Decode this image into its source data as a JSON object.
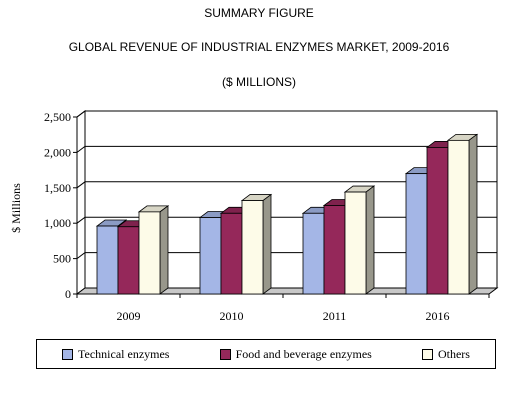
{
  "header": {
    "line1": "SUMMARY FIGURE",
    "line2": "GLOBAL REVENUE OF INDUSTRIAL ENZYMES MARKET, 2009-2016",
    "line3": "($ MILLIONS)"
  },
  "chart_data": {
    "type": "bar",
    "title": "GLOBAL REVENUE OF INDUSTRIAL ENZYMES MARKET, 2009-2016",
    "subtitle": "($ MILLIONS)",
    "ylabel": "$ Millions",
    "xlabel": "",
    "categories": [
      "2009",
      "2010",
      "2011",
      "2016"
    ],
    "ylim": [
      0,
      2500
    ],
    "yticks": [
      "0",
      "500",
      "1,000",
      "1,500",
      "2,000",
      "2,500"
    ],
    "ytick_values": [
      0,
      500,
      1000,
      1500,
      2000,
      2500
    ],
    "grid": true,
    "legend_position": "bottom",
    "series": [
      {
        "name": "Technical enzymes",
        "values": [
          960,
          1080,
          1140,
          1700
        ],
        "color": "#a4b6e6"
      },
      {
        "name": "Food and beverage enzymes",
        "values": [
          950,
          1140,
          1250,
          2070
        ],
        "color": "#95285a"
      },
      {
        "name": "Others",
        "values": [
          1160,
          1320,
          1440,
          2170
        ],
        "color": "#fdfbe8"
      }
    ]
  }
}
